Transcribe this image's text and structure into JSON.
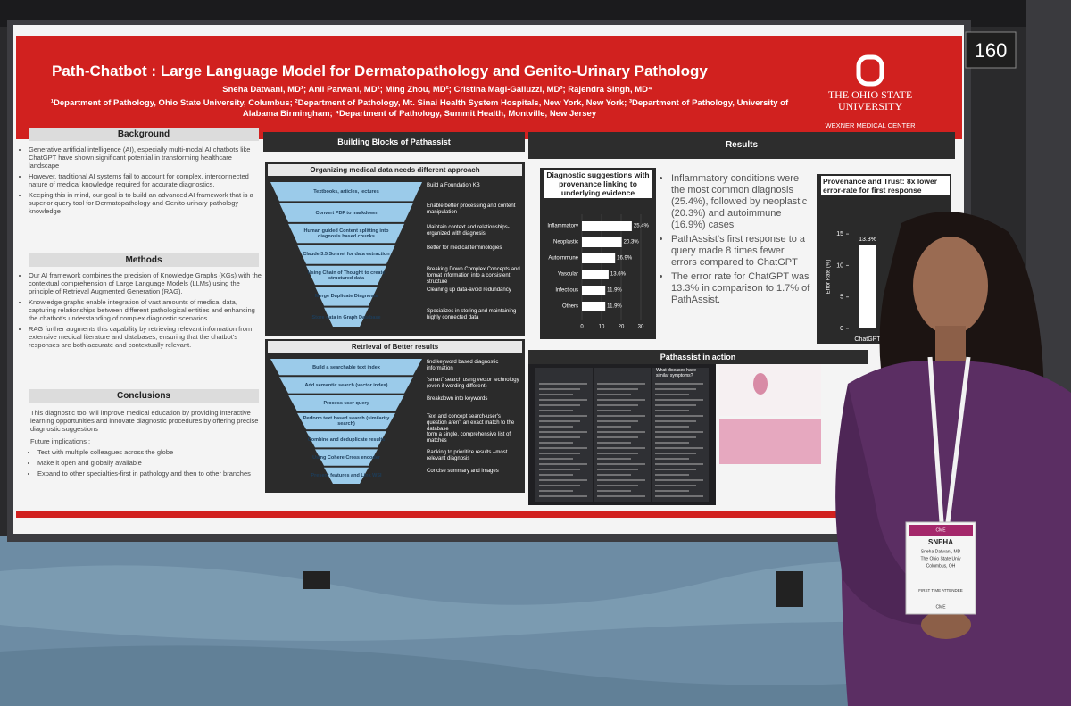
{
  "booth_number": "160",
  "poster": {
    "title": "Path-Chatbot : Large Language Model for Dermatopathology and Genito-Urinary Pathology",
    "authors": "Sneha Datwani, MD¹; Anil Parwani, MD¹; Ming Zhou, MD²; Cristina Magi-Galluzzi, MD³; Rajendra Singh, MD⁴",
    "affiliations": "¹Department of Pathology, Ohio State University, Columbus; ²Department of Pathology, Mt. Sinai Health System Hospitals, New York, New York; ³Department of Pathology, University of Alabama Birmingham; ⁴Department of Pathology, Summit Health, Montville, New Jersey",
    "logo": {
      "name": "THE OHIO STATE UNIVERSITY",
      "unit": "WEXNER MEDICAL CENTER"
    },
    "background": {
      "heading": "Background",
      "bullets": [
        "Generative artificial intelligence (AI), especially multi-modal AI chatbots like ChatGPT have shown significant potential in transforming healthcare landscape",
        "However, traditional AI systems fail to account for complex, interconnected nature of medical knowledge required for accurate diagnostics.",
        "Keeping this in mind, our goal is to build an advanced AI framework that is a superior query tool for Dermatopathology and Genito-urinary pathology knowledge"
      ]
    },
    "methods": {
      "heading": "Methods",
      "bullets": [
        "Our AI framework combines the precision of Knowledge Graphs (KGs) with the contextual comprehension of Large Language Models (LLMs) using the principle of Retrieval Augmented Generation (RAG).",
        "Knowledge graphs enable integration of vast amounts of medical data, capturing relationships between different pathological entities and enhancing the chatbot's understanding of complex diagnostic scenarios.",
        "RAG further augments this capability by retrieving relevant information from extensive medical literature and databases, ensuring that the chatbot's responses are both accurate and contextually relevant."
      ]
    },
    "conclusions": {
      "heading": "Conclusions",
      "text": "This diagnostic tool will improve medical education by providing interactive learning opportunities and innovate diagnostic procedures by offering precise diagnostic suggestions",
      "future_label": "Future implications :",
      "bullets": [
        "Test with multiple colleagues across the globe",
        "Make it open and globally available",
        "Expand to other specialties-first in pathology and then to other branches"
      ]
    },
    "building_blocks": {
      "heading": "Building Blocks of Pathassist",
      "organizing": {
        "title": "Organizing medical data needs different approach",
        "steps": [
          {
            "step": "Textbooks, articles, lectures",
            "purpose": "Build a Foundation KB"
          },
          {
            "step": "Convert PDF to markdown",
            "purpose": "Enable better processing and content manipulation"
          },
          {
            "step": "Human guided Content splitting into diagnosis based chunks",
            "purpose": "Maintain context and relationships-organized with diagnosis"
          },
          {
            "step": "Claude 3.5 Sonnet for data extraction",
            "purpose": "Better for medical terminologies"
          },
          {
            "step": "Using Chain of Thought to create structured data",
            "purpose": "Breaking Down Complex Concepts and format information into a consistent structure"
          },
          {
            "step": "Merge Duplicate Diagnosis",
            "purpose": "Cleaning up data-avoid redundancy"
          },
          {
            "step": "Store data in Graph Database",
            "purpose": "Specializes in storing and maintaining highly connected data"
          }
        ]
      },
      "retrieval": {
        "title": "Retrieval of Better results",
        "steps": [
          {
            "step": "Build a searchable text index",
            "purpose": "find keyword based diagnostic information"
          },
          {
            "step": "Add semantic search (vector index)",
            "purpose": "\"smart\" search using vector technology (even if wording different)"
          },
          {
            "step": "Process user query",
            "purpose": "Breakdown into keywords"
          },
          {
            "step": "Perform text based search (similarity search)",
            "purpose": "Text and concept search-user's question aren't an exact match to the database"
          },
          {
            "step": "Combine and deduplicate results",
            "purpose": "form a single, comprehensive list of matches"
          },
          {
            "step": "Using Cohere Cross encoder",
            "purpose": "Ranking to prioritize results –most relevant diagnosis"
          },
          {
            "step": "Present features and Link WSI",
            "purpose": "Concise summary and images"
          }
        ]
      }
    },
    "results": {
      "heading": "Results",
      "bullets": [
        "Inflammatory conditions were the most common diagnosis (25.4%), followed by neoplastic (20.3%) and autoimmune (16.9%) cases",
        "PathAssist's first response to a query made 8 times fewer errors compared to ChatGPT",
        "The error rate for ChatGPT was 13.3% in comparison to 1.7% of PathAssist."
      ]
    },
    "in_action": {
      "heading": "Pathassist in action",
      "question": "What diseases have similar symptoms?"
    }
  },
  "badge": {
    "name": "SNEHA",
    "full_name": "Sneha Datwani, MD",
    "org": "The Ohio State Univ",
    "city": "Columbus, OH",
    "tag": "FIRST TIME ATTENDEE",
    "cme": "CME"
  },
  "chart_data": [
    {
      "type": "bar",
      "horizontal": true,
      "title": "Diagnostic suggestions with provenance linking to underlying evidence",
      "categories": [
        "Inflammatory",
        "Neoplastic",
        "Autoimmune",
        "Vascular",
        "Infectious",
        "Others"
      ],
      "values": [
        25.4,
        20.3,
        16.9,
        13.6,
        11.9,
        11.9
      ],
      "value_labels": [
        "25.4%",
        "20.3%",
        "16.9%",
        "13.6%",
        "11.9%",
        "11.9%"
      ],
      "xlim": [
        0,
        30
      ],
      "xticks": [
        0,
        10,
        20,
        30
      ],
      "color": "#ffffff"
    },
    {
      "type": "bar",
      "title": "Provenance and Trust: 8x lower error-rate for first response",
      "ylabel": "Error Rate (%)",
      "categories": [
        "ChatGPT"
      ],
      "values": [
        13.3
      ],
      "value_labels": [
        "13.3%"
      ],
      "ylim": [
        0,
        17
      ],
      "yticks": [
        0,
        5,
        10,
        15
      ],
      "color": "#ffffff"
    }
  ]
}
